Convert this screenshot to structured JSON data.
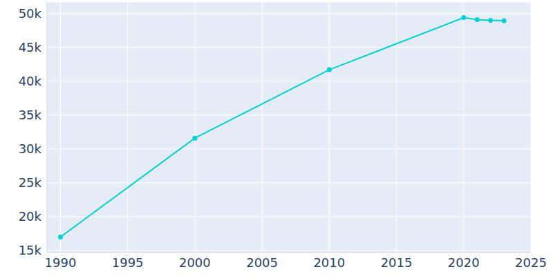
{
  "chart_data": {
    "type": "line",
    "x": [
      1990,
      2000,
      2010,
      2020,
      2021,
      2022,
      2023
    ],
    "values": [
      17000,
      31600,
      41700,
      49400,
      49100,
      49000,
      48950
    ],
    "color": "#00cfd1",
    "marker": "circle",
    "xlim": [
      1989,
      2025
    ],
    "xticks": [
      1990,
      1995,
      2000,
      2005,
      2010,
      2015,
      2020,
      2025
    ],
    "ylim": [
      14700,
      51700
    ],
    "yticks": [
      {
        "value": 15000,
        "label": "15k"
      },
      {
        "value": 20000,
        "label": "20k"
      },
      {
        "value": 25000,
        "label": "25k"
      },
      {
        "value": 30000,
        "label": "30k"
      },
      {
        "value": 35000,
        "label": "35k"
      },
      {
        "value": 40000,
        "label": "40k"
      },
      {
        "value": 45000,
        "label": "45k"
      },
      {
        "value": 50000,
        "label": "50k"
      }
    ],
    "grid": true
  }
}
